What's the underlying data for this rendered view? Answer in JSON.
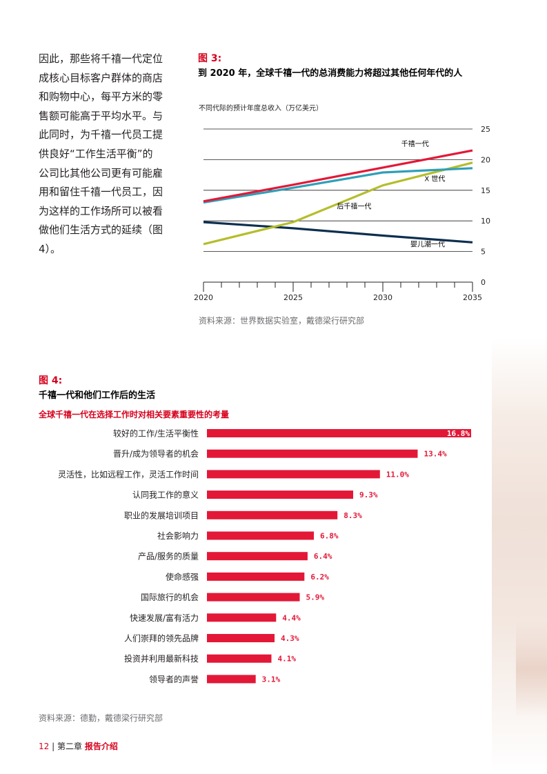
{
  "body_text": [
    "因此，那些将千禧一代定位",
    "成核心目标客户群体的商店",
    "和购物中心，每平方米的零",
    "售额可能高于平均水平。与",
    "此同时，为千禧一代员工提",
    "供良好“工作生活平衡”的",
    "公司比其他公司更有可能雇",
    "用和留住千禧一代员工，因",
    "为这样的工作场所可以被看",
    "做他们生活方式的延续（图",
    "4）。"
  ],
  "figure3": {
    "label": "图 3:",
    "title": "到 2020 年，全球千禧一代的总消费能力将超过其他任何年代的人",
    "source": "资料来源：世界数据实验室，戴德梁行研究部"
  },
  "figure4": {
    "label": "图 4:",
    "title": "千禧一代和他们工作后的生活",
    "source": "资料来源：德勤，戴德梁行研究部"
  },
  "footer": {
    "page": "12",
    "separator": "|",
    "chapter": "第二章",
    "section": "报告介绍"
  },
  "colors": {
    "brand_red": "#d6001c",
    "millennials": "#e31837",
    "gen_x": "#2f9fb8",
    "post_millennials": "#b5bd2b",
    "baby_boomers": "#0d2f4f",
    "grid": "#231f20",
    "source_grey": "#6d6e71"
  },
  "chart_data": [
    {
      "type": "line",
      "title": "图 3: 到 2020 年，全球千禧一代的总消费能力将超过其他任何年代的人",
      "ylabel": "不同代际的预计年度总收入（万亿美元）",
      "xlabel": "",
      "x_ticks": [
        "2020",
        "2025",
        "2030",
        "2035"
      ],
      "y_ticks": [
        "0",
        "5",
        "10",
        "15",
        "20",
        "25"
      ],
      "xlim": [
        2020,
        2035
      ],
      "ylim": [
        0,
        25
      ],
      "grid": true,
      "series": [
        {
          "name": "千禧一代",
          "color": "#e31837",
          "points": [
            [
              2020,
              13.2
            ],
            [
              2025,
              15.9
            ],
            [
              2030,
              18.7
            ],
            [
              2035,
              21.5
            ]
          ]
        },
        {
          "name": "X 世代",
          "color": "#2f9fb8",
          "points": [
            [
              2020,
              13.0
            ],
            [
              2025,
              15.4
            ],
            [
              2030,
              17.9
            ],
            [
              2035,
              18.6
            ]
          ]
        },
        {
          "name": "后千禧一代",
          "color": "#b5bd2b",
          "points": [
            [
              2020,
              6.2
            ],
            [
              2025,
              9.8
            ],
            [
              2030,
              15.8
            ],
            [
              2035,
              19.5
            ]
          ]
        },
        {
          "name": "婴儿潮一代",
          "color": "#0d2f4f",
          "points": [
            [
              2020,
              9.8
            ],
            [
              2025,
              8.8
            ],
            [
              2030,
              7.6
            ],
            [
              2035,
              6.5
            ]
          ]
        }
      ]
    },
    {
      "type": "bar",
      "orientation": "horizontal",
      "title": "千禧一代和他们工作后的生活",
      "subtitle": "全球千禧一代在选择工作时对相关要素重要性的考量",
      "color": "#e31837",
      "xlim": [
        0,
        16.8
      ],
      "categories": [
        "较好的工作/生活平衡性",
        "晋升/成为领导者的机会",
        "灵活性，比如远程工作，灵活工作时间",
        "认同我工作的意义",
        "职业的发展培训项目",
        "社会影响力",
        "产品/服务的质量",
        "使命感强",
        "国际旅行的机会",
        "快速发展/富有活力",
        "人们崇拜的领先品牌",
        "投资并利用最新科技",
        "领导者的声誉"
      ],
      "values": [
        16.8,
        13.4,
        11.0,
        9.3,
        8.3,
        6.8,
        6.4,
        6.2,
        5.9,
        4.4,
        4.3,
        4.1,
        3.1
      ],
      "labels": [
        "16.8%",
        "13.4%",
        "11.0%",
        "9.3%",
        "8.3%",
        "6.8%",
        "6.4%",
        "6.2%",
        "5.9%",
        "4.4%",
        "4.3%",
        "4.1%",
        "3.1%"
      ]
    }
  ]
}
